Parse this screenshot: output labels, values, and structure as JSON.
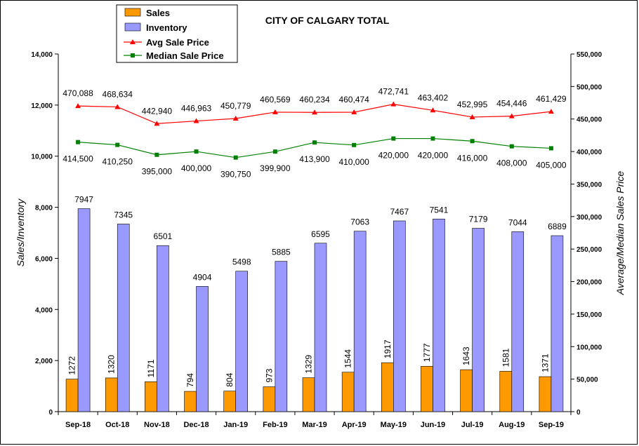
{
  "chart_data": {
    "type": "bar",
    "title": "CITY OF CALGARY TOTAL",
    "categories": [
      "Sep-18",
      "Oct-18",
      "Nov-18",
      "Dec-18",
      "Jan-19",
      "Feb-19",
      "Mar-19",
      "Apr-19",
      "May-19",
      "Jun-19",
      "Jul-19",
      "Aug-19",
      "Sep-19"
    ],
    "ylabel": "Sales/Inventory",
    "y2label": "Average/Median Sales Price",
    "ylim": [
      0,
      14000
    ],
    "y2lim": [
      0,
      550000
    ],
    "yticks": [
      "0",
      "2,000",
      "4,000",
      "6,000",
      "8,000",
      "10,000",
      "12,000",
      "14,000"
    ],
    "y2ticks": [
      "0",
      "50,000",
      "100,000",
      "150,000",
      "200,000",
      "250,000",
      "300,000",
      "350,000",
      "400,000",
      "450,000",
      "500,000",
      "550,000"
    ],
    "grid": false,
    "legend_position": "top-left",
    "series": [
      {
        "name": "Sales",
        "type": "bar",
        "axis": "left",
        "color": "#FF9900",
        "values": [
          1272,
          1320,
          1171,
          794,
          804,
          973,
          1329,
          1544,
          1917,
          1777,
          1643,
          1581,
          1371
        ],
        "labels": [
          "1272",
          "1320",
          "1171",
          "794",
          "804",
          "973",
          "1329",
          "1544",
          "1917",
          "1777",
          "1643",
          "1581",
          "1371"
        ]
      },
      {
        "name": "Inventory",
        "type": "bar",
        "axis": "left",
        "color": "#9999FF",
        "values": [
          7947,
          7345,
          6501,
          4904,
          5498,
          5885,
          6595,
          7063,
          7467,
          7541,
          7179,
          7044,
          6889
        ],
        "labels": [
          "7947",
          "7345",
          "6501",
          "4904",
          "5498",
          "5885",
          "6595",
          "7063",
          "7467",
          "7541",
          "7179",
          "7044",
          "6889"
        ]
      },
      {
        "name": "Avg Sale Price",
        "type": "line",
        "axis": "right",
        "color": "#FF0000",
        "marker": "triangle",
        "values": [
          470088,
          468634,
          442940,
          446963,
          450779,
          460569,
          460234,
          460474,
          472741,
          463402,
          452995,
          454446,
          461429
        ],
        "labels": [
          "470,088",
          "468,634",
          "442,940",
          "446,963",
          "450,779",
          "460,569",
          "460,234",
          "460,474",
          "472,741",
          "463,402",
          "452,995",
          "454,446",
          "461,429"
        ]
      },
      {
        "name": "Median Sale Price",
        "type": "line",
        "axis": "right",
        "color": "#008000",
        "marker": "square",
        "values": [
          414500,
          410250,
          395000,
          400000,
          390750,
          399900,
          413900,
          410000,
          420000,
          420000,
          416000,
          408000,
          405000
        ],
        "labels": [
          "414,500",
          "410,250",
          "395,000",
          "400,000",
          "390,750",
          "399,900",
          "413,900",
          "410,000",
          "420,000",
          "420,000",
          "416,000",
          "408,000",
          "405,000"
        ]
      }
    ]
  }
}
